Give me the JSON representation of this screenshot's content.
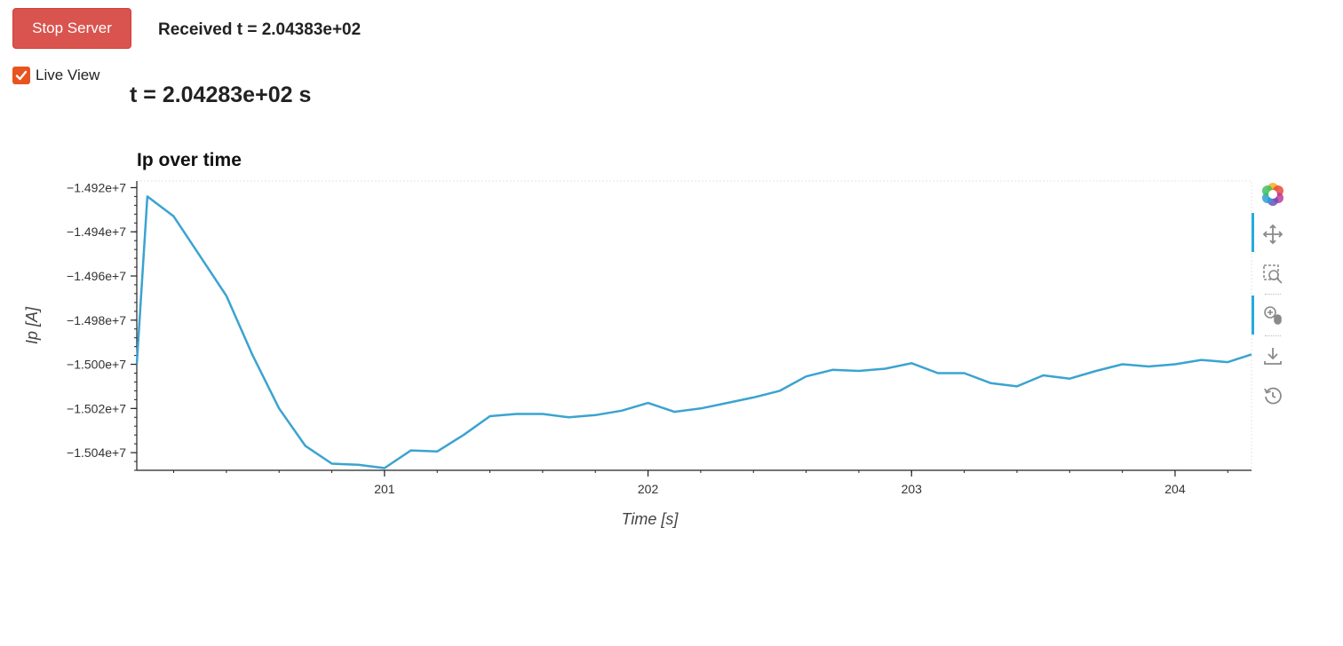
{
  "controls": {
    "stop_label": "Stop Server",
    "received_text": "Received t = 2.04383e+02",
    "live_view_label": "Live View",
    "live_view_checked": true,
    "time_text": "t = 2.04283e+02 s"
  },
  "colors": {
    "stop_button": "#d9534f",
    "checkbox": "#e8541f",
    "line": "#3ba3d0"
  },
  "toolbar": {
    "icons": [
      "bokeh-logo-icon",
      "pan-icon",
      "box-zoom-icon",
      "wheel-zoom-icon",
      "save-icon",
      "reset-icon"
    ]
  },
  "chart_data": {
    "type": "line",
    "title": "Ip over time",
    "xlabel": "Time [s]",
    "ylabel": "Ip [A]",
    "xlim": [
      200.06,
      204.29
    ],
    "ylim": [
      -15048000,
      -14917000
    ],
    "x_ticks": [
      201,
      202,
      203,
      204
    ],
    "x_tick_labels": [
      "201",
      "202",
      "203",
      "204"
    ],
    "y_ticks": [
      -14920000,
      -14940000,
      -14960000,
      -14980000,
      -15000000,
      -15020000,
      -15040000
    ],
    "y_tick_labels": [
      "−1.492e+7",
      "−1.494e+7",
      "−1.496e+7",
      "−1.498e+7",
      "−1.500e+7",
      "−1.502e+7",
      "−1.504e+7"
    ],
    "series": [
      {
        "x": [
          200.06,
          200.1,
          200.2,
          200.3,
          200.4,
          200.5,
          200.6,
          200.7,
          200.8,
          200.9,
          201.0,
          201.1,
          201.2,
          201.3,
          201.4,
          201.5,
          201.6,
          201.7,
          201.8,
          201.9,
          202.0,
          202.1,
          202.2,
          202.3,
          202.4,
          202.5,
          202.6,
          202.7,
          202.8,
          202.9,
          203.0,
          203.1,
          203.2,
          203.3,
          203.4,
          203.5,
          203.6,
          203.7,
          203.8,
          203.9,
          204.0,
          204.1,
          204.2,
          204.29
        ],
        "y": [
          -15000000,
          -14924000,
          -14933000,
          -14951000,
          -14969000,
          -14996000,
          -15020000,
          -15037000,
          -15045000,
          -15045500,
          -15047000,
          -15039000,
          -15039500,
          -15032000,
          -15023500,
          -15022500,
          -15022500,
          -15024000,
          -15023000,
          -15021000,
          -15017500,
          -15021500,
          -15020000,
          -15017500,
          -15015000,
          -15012000,
          -15005500,
          -15002500,
          -15003000,
          -15002000,
          -14999500,
          -15004000,
          -15004000,
          -15008500,
          -15010000,
          -15005000,
          -15006500,
          -15003000,
          -15000000,
          -15001000,
          -15000000,
          -14998000,
          -14999000,
          -14995500
        ]
      }
    ]
  }
}
